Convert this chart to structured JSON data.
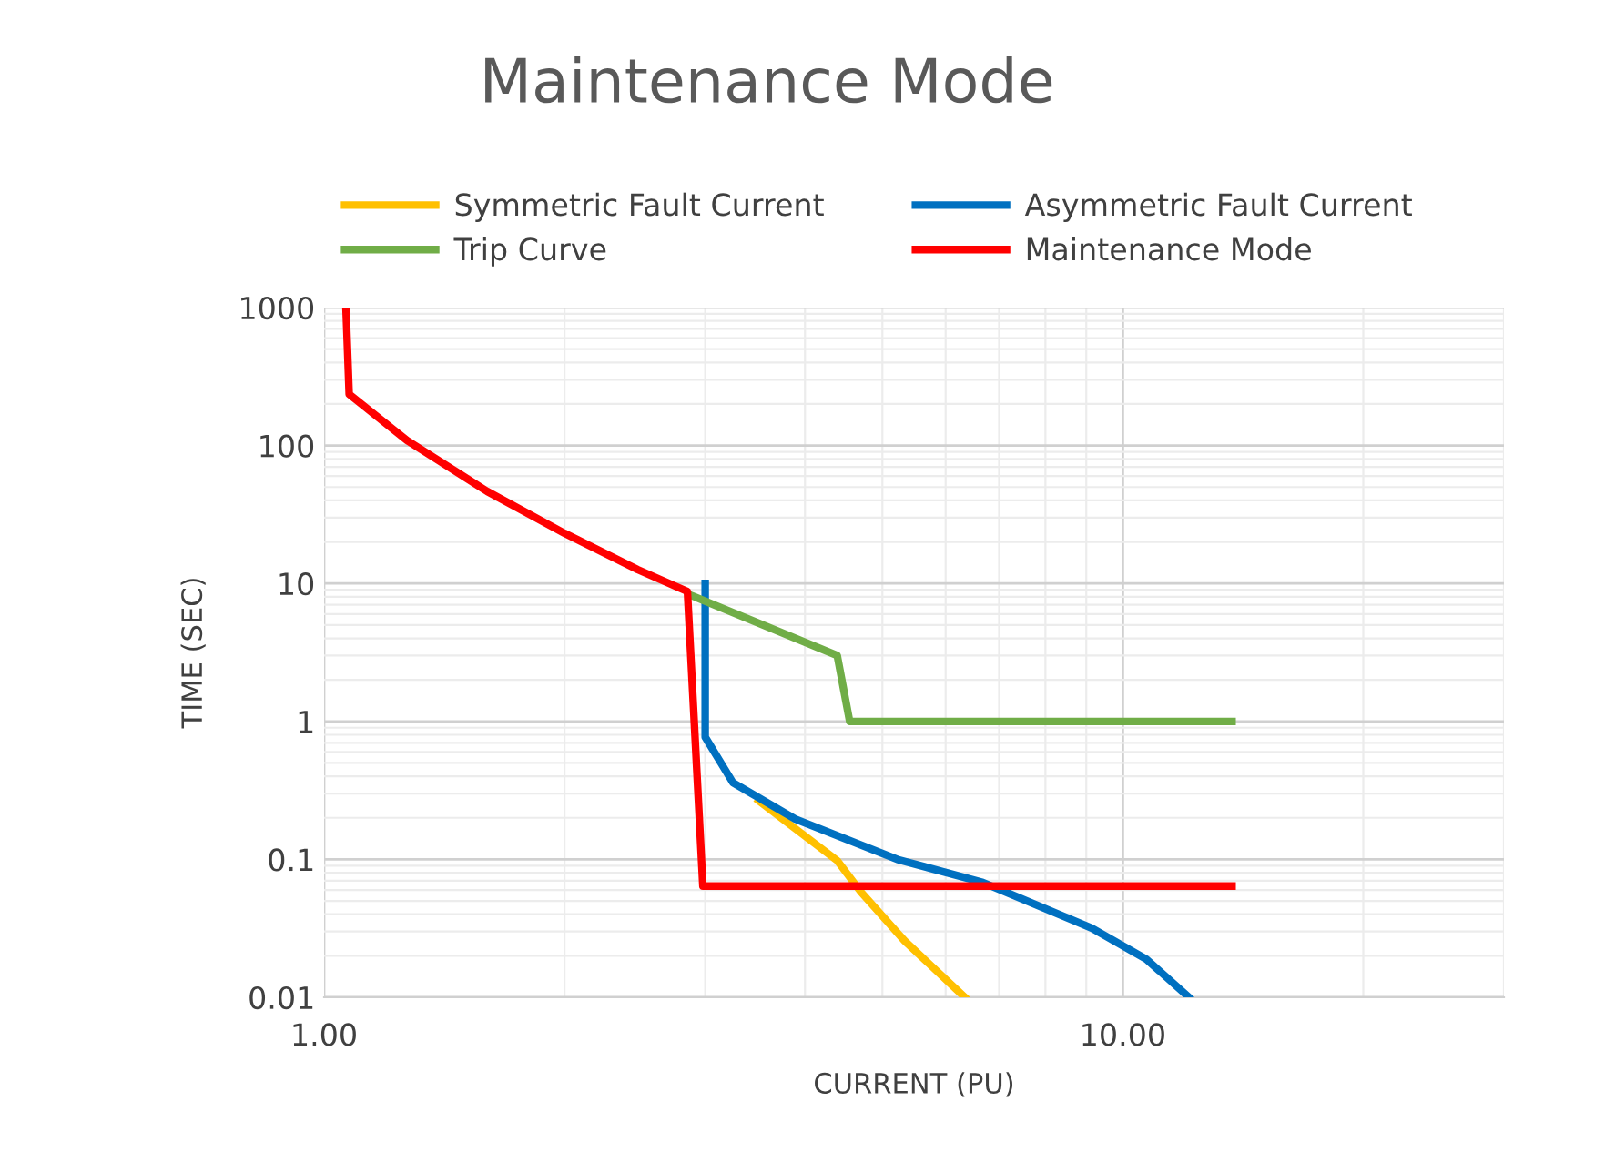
{
  "chart_data": {
    "type": "line",
    "title": "Maintenance Mode",
    "xlabel": "CURRENT (PU)",
    "ylabel": "TIME (SEC)",
    "log": "xy",
    "grid": true,
    "legend": "top",
    "marker": "none",
    "line_style": "solid",
    "xlim": [
      1,
      30
    ],
    "xticks": [
      {
        "value": 1,
        "label": "1.00"
      },
      {
        "value": 10,
        "label": "10.00"
      }
    ],
    "ylim": [
      0.01,
      1000
    ],
    "yticks": [
      0.01,
      0.1,
      1,
      10,
      100,
      1000
    ],
    "series": [
      {
        "name": "Symmetric Fault Current",
        "color": "#ffc000",
        "x": [
          3.5,
          4.39,
          4.7,
          5.33,
          6.34
        ],
        "values": [
          0.266,
          0.098,
          0.058,
          0.0257,
          0.01
        ]
      },
      {
        "name": "Asymmetric Fault Current",
        "color": "#0070c0",
        "x": [
          3.0,
          3.0,
          3.0,
          3.25,
          3.89,
          5.22,
          6.68,
          9.15,
          10.7,
          12.1
        ],
        "values": [
          10,
          0.98,
          0.77,
          0.36,
          0.196,
          0.1,
          0.068,
          0.0317,
          0.0189,
          0.01
        ]
      },
      {
        "name": "Trip Curve",
        "color": "#70ad47",
        "x": [
          2.88,
          4.39,
          4.55,
          13.7
        ],
        "values": [
          8.2,
          3.0,
          1.0,
          1.0
        ]
      },
      {
        "name": "Maintenance Mode",
        "color": "#ff0000",
        "x": [
          1.065,
          1.075,
          1.27,
          1.6,
          2.0,
          2.47,
          2.85,
          2.98,
          13.7
        ],
        "values": [
          1000,
          235,
          109,
          46.5,
          23.1,
          12.6,
          8.75,
          0.064,
          0.064
        ]
      }
    ]
  }
}
